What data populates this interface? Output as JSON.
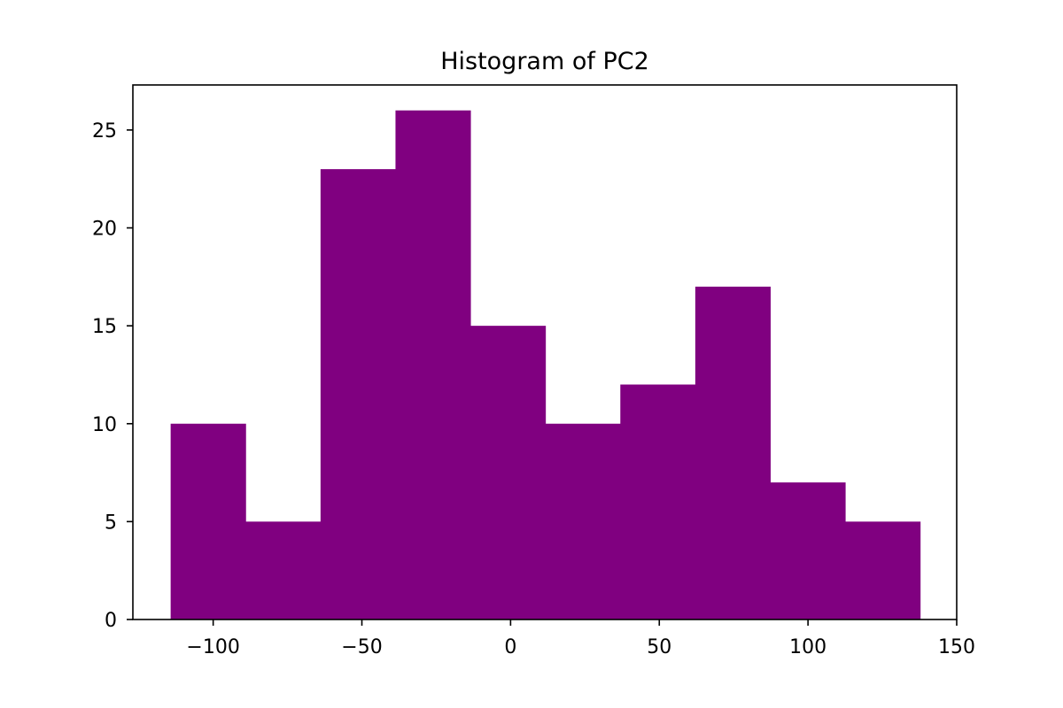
{
  "chart_data": {
    "type": "bar",
    "subtype": "histogram",
    "title": "Histogram of PC2",
    "xlabel": "",
    "ylabel": "",
    "bin_edges": [
      -114.3,
      -89.1,
      -63.9,
      -38.7,
      -13.5,
      11.7,
      36.9,
      62.1,
      87.3,
      112.5,
      137.7
    ],
    "values": [
      10,
      5,
      23,
      26,
      15,
      10,
      12,
      17,
      7,
      5
    ],
    "xlim": [
      -127,
      150
    ],
    "ylim": [
      0,
      27.3
    ],
    "x_ticks": [
      -100,
      -50,
      0,
      50,
      100,
      150
    ],
    "x_tick_labels": [
      "−100",
      "−50",
      "0",
      "50",
      "100",
      "150"
    ],
    "y_ticks": [
      0,
      5,
      10,
      15,
      20,
      25
    ],
    "y_tick_labels": [
      "0",
      "5",
      "10",
      "15",
      "20",
      "25"
    ],
    "bar_color": "#800080",
    "grid": false,
    "legend": "none"
  }
}
